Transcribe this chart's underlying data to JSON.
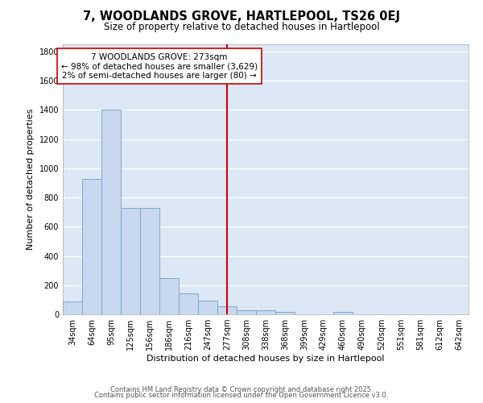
{
  "title1": "7, WOODLANDS GROVE, HARTLEPOOL, TS26 0EJ",
  "title2": "Size of property relative to detached houses in Hartlepool",
  "xlabel": "Distribution of detached houses by size in Hartlepool",
  "ylabel": "Number of detached properties",
  "bar_labels": [
    "34sqm",
    "64sqm",
    "95sqm",
    "125sqm",
    "156sqm",
    "186sqm",
    "216sqm",
    "247sqm",
    "277sqm",
    "308sqm",
    "338sqm",
    "368sqm",
    "399sqm",
    "429sqm",
    "460sqm",
    "490sqm",
    "520sqm",
    "551sqm",
    "581sqm",
    "612sqm",
    "642sqm"
  ],
  "bar_values": [
    90,
    930,
    1400,
    730,
    730,
    250,
    145,
    95,
    55,
    30,
    25,
    15,
    0,
    0,
    18,
    0,
    0,
    0,
    0,
    0,
    0
  ],
  "bar_color": "#c8d8ee",
  "bar_edge_color": "#7aaad0",
  "background_color": "#ffffff",
  "plot_bg_color": "#dce8f5",
  "grid_color": "#ffffff",
  "vline_index": 8,
  "vline_color": "#cc0000",
  "annotation_text": "7 WOODLANDS GROVE: 273sqm\n← 98% of detached houses are smaller (3,629)\n2% of semi-detached houses are larger (80) →",
  "annotation_box_color": "#ffffff",
  "annotation_box_edge": "#cc0000",
  "ylim": [
    0,
    1850
  ],
  "yticks": [
    0,
    200,
    400,
    600,
    800,
    1000,
    1200,
    1400,
    1600,
    1800
  ],
  "footnote1": "Contains HM Land Registry data © Crown copyright and database right 2025.",
  "footnote2": "Contains public sector information licensed under the Open Government Licence v3.0.",
  "title1_fontsize": 10.5,
  "title2_fontsize": 8.5,
  "xlabel_fontsize": 8,
  "ylabel_fontsize": 8,
  "tick_fontsize": 7,
  "annotation_fontsize": 7.5,
  "footnote_fontsize": 6
}
